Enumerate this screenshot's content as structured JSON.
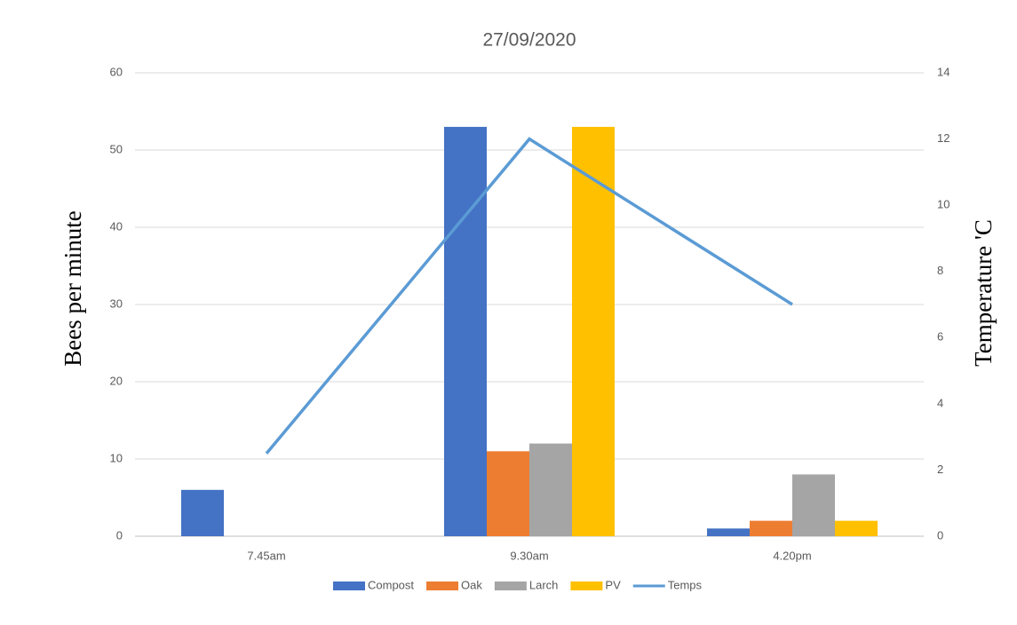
{
  "chart_data": {
    "type": "bar",
    "title": "27/09/2020",
    "categories": [
      "7.45am",
      "9.30am",
      "4.20pm"
    ],
    "series": [
      {
        "name": "Compost",
        "color": "#4472c4",
        "values": [
          6,
          53,
          1
        ]
      },
      {
        "name": "Oak",
        "color": "#ed7d31",
        "values": [
          0,
          11,
          2
        ]
      },
      {
        "name": "Larch",
        "color": "#a5a5a5",
        "values": [
          0,
          12,
          8
        ]
      },
      {
        "name": "PV",
        "color": "#ffc000",
        "values": [
          0,
          53,
          2
        ]
      },
      {
        "name": "Temps",
        "color": "#5b9bd5",
        "type": "line",
        "axis": "y2",
        "values": [
          2.5,
          12,
          7
        ]
      }
    ],
    "y_label": "Bees per minute",
    "y2_label": "Temperature 'C",
    "ylim": [
      0,
      60
    ],
    "yticks": [
      0,
      10,
      20,
      30,
      40,
      50,
      60
    ],
    "y2lim": [
      0,
      14
    ],
    "y2ticks": [
      0,
      2,
      4,
      6,
      8,
      10,
      12,
      14
    ],
    "grid": true,
    "legend": "bottom"
  }
}
